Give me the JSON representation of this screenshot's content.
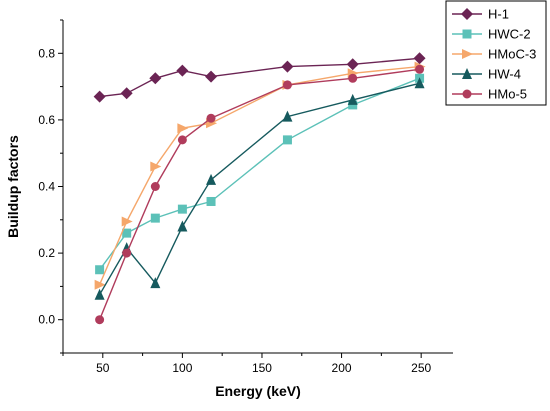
{
  "chart_data": {
    "type": "line",
    "xlabel": "Energy (keV)",
    "ylabel": "Buildup factors",
    "xlim": [
      25,
      270
    ],
    "ylim": [
      -0.1,
      0.9
    ],
    "xticks": [
      50,
      100,
      150,
      200,
      250
    ],
    "yticks": [
      0.0,
      0.2,
      0.4,
      0.6,
      0.8
    ],
    "xtick_labels": [
      "50",
      "100",
      "150",
      "200",
      "250"
    ],
    "ytick_labels": [
      "0.0",
      "0.2",
      "0.4",
      "0.6",
      "0.8"
    ],
    "legend_position": "top-right",
    "grid": false,
    "series": [
      {
        "name": "H-1",
        "color": "#6b2454",
        "marker": "diamond",
        "x": [
          48,
          65,
          83,
          100,
          118,
          166,
          207,
          249
        ],
        "y": [
          0.67,
          0.68,
          0.725,
          0.748,
          0.73,
          0.76,
          0.767,
          0.785
        ]
      },
      {
        "name": "HWC-2",
        "color": "#5cc1b8",
        "marker": "square",
        "x": [
          48,
          65,
          83,
          100,
          118,
          166,
          207,
          249
        ],
        "y": [
          0.15,
          0.26,
          0.305,
          0.332,
          0.355,
          0.54,
          0.645,
          0.725
        ]
      },
      {
        "name": "HMoC-3",
        "color": "#f5a76b",
        "marker": "triangle-right",
        "x": [
          48,
          65,
          83,
          100,
          118,
          166,
          207,
          249
        ],
        "y": [
          0.105,
          0.295,
          0.46,
          0.575,
          0.59,
          0.705,
          0.74,
          0.76
        ]
      },
      {
        "name": "HW-4",
        "color": "#165a5e",
        "marker": "triangle-up",
        "x": [
          48,
          65,
          83,
          100,
          118,
          166,
          207,
          249
        ],
        "y": [
          0.075,
          0.215,
          0.11,
          0.28,
          0.42,
          0.61,
          0.66,
          0.71
        ]
      },
      {
        "name": "HMo-5",
        "color": "#b03c5c",
        "marker": "circle",
        "x": [
          48,
          65,
          83,
          100,
          118,
          166,
          207,
          249
        ],
        "y": [
          0.0,
          0.2,
          0.4,
          0.54,
          0.605,
          0.705,
          0.725,
          0.752
        ]
      }
    ]
  }
}
